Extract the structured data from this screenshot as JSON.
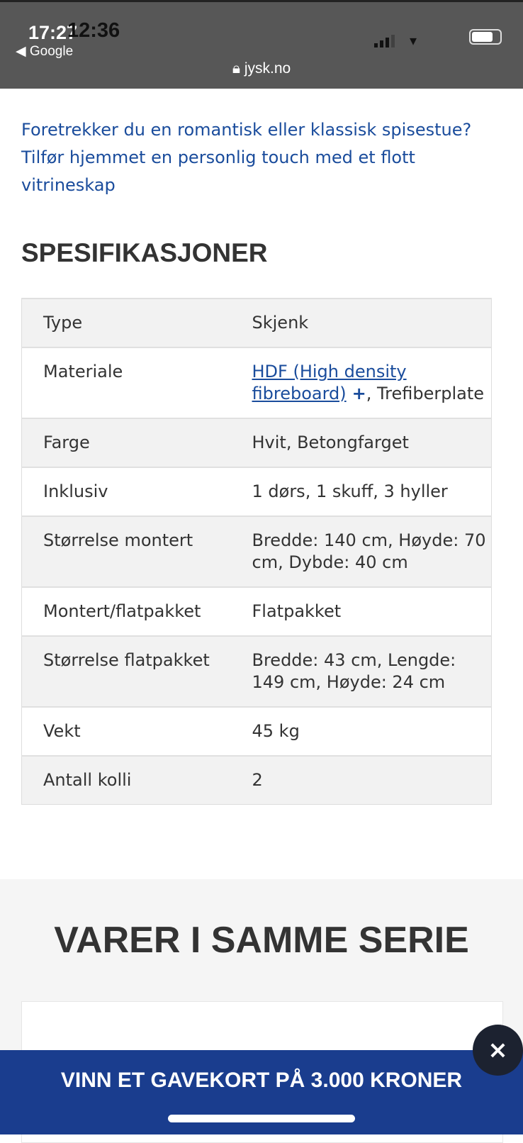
{
  "status_bar": {
    "time_back": "17:27",
    "time_front": "12:36",
    "back_label": "◀ Google",
    "url": "jysk.no",
    "battery_percent": 75
  },
  "intro": "Foretrekker du en romantisk eller klassisk spisestue? Tilfør hjemmet en personlig touch med et flott vitrineskap",
  "spec_title": "SPESIFIKASJONER",
  "specs": [
    {
      "label": "Type",
      "value": "Skjenk"
    },
    {
      "label": "Materiale",
      "link": "HDF (High density fibreboard)",
      "plus": "+",
      "value": ", Trefiberplate"
    },
    {
      "label": "Farge",
      "value": "Hvit, Betongfarget"
    },
    {
      "label": "Inklusiv",
      "value": "1 dørs, 1 skuff, 3 hyller"
    },
    {
      "label": "Størrelse montert",
      "value": "Bredde: 140 cm, Høyde: 70 cm, Dybde: 40 cm"
    },
    {
      "label": "Montert/flatpakket",
      "value": "Flatpakket"
    },
    {
      "label": "Størrelse flatpakket",
      "value": "Bredde: 43 cm, Lengde: 149 cm, Høyde: 24 cm"
    },
    {
      "label": "Vekt",
      "value": "45 kg"
    },
    {
      "label": "Antall kolli",
      "value": "2"
    }
  ],
  "series_title": "VARER I SAMME SERIE",
  "banner": "VINN ET GAVEKORT PÅ 3.000 KRONER",
  "close_icon": "×"
}
